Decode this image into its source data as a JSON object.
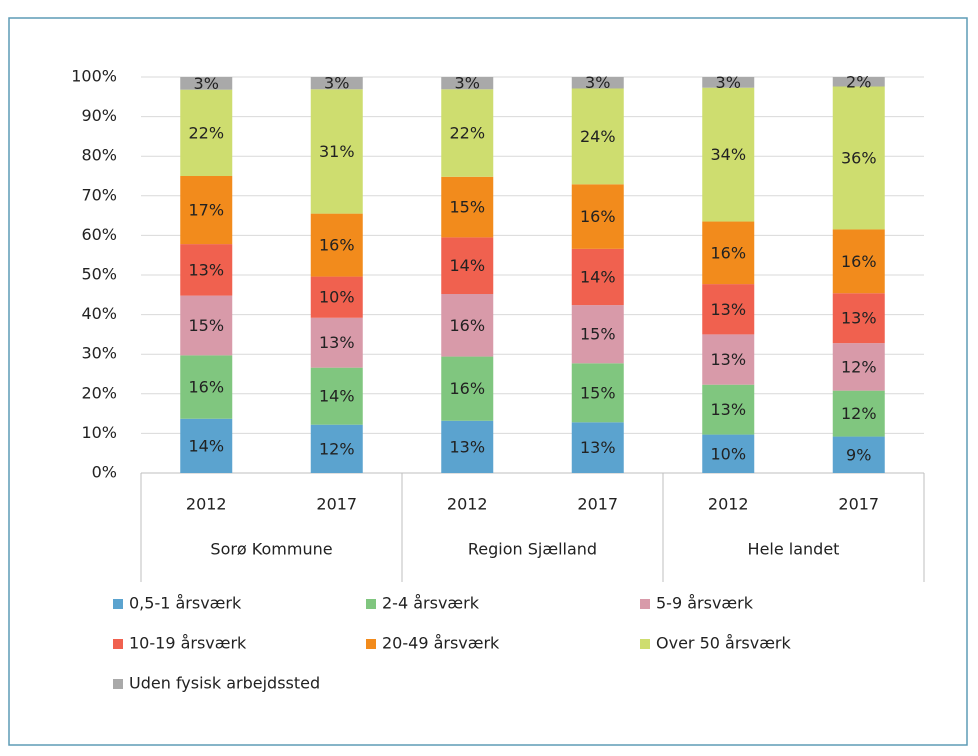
{
  "chart_data": {
    "type": "stacked_bar",
    "categories": [
      "2012",
      "2017",
      "2012",
      "2017",
      "2012",
      "2017"
    ],
    "groups": [
      "Sorø Kommune",
      "Region Sjælland",
      "Hele landet"
    ],
    "ylim": [
      0,
      100
    ],
    "yticks": [
      {
        "value": 0,
        "label": "0%"
      },
      {
        "value": 10,
        "label": "10%"
      },
      {
        "value": 20,
        "label": "20%"
      },
      {
        "value": 30,
        "label": "30%"
      },
      {
        "value": 40,
        "label": "40%"
      },
      {
        "value": 50,
        "label": "50%"
      },
      {
        "value": 60,
        "label": "60%"
      },
      {
        "value": 70,
        "label": "70%"
      },
      {
        "value": 80,
        "label": "80%"
      },
      {
        "value": 90,
        "label": "90%"
      },
      {
        "value": 100,
        "label": "100%"
      }
    ],
    "grid": true,
    "series": [
      {
        "name": "0,5-1 årsværk",
        "color": "#5ba3cf",
        "values": [
          13.7,
          12.2,
          13.2,
          12.8,
          9.7,
          9.2
        ],
        "value_labels": [
          "14%",
          "12%",
          "13%",
          "13%",
          "10%",
          "9%"
        ]
      },
      {
        "name": "2-4 årsværk",
        "color": "#80c67f",
        "values": [
          16.0,
          14.4,
          16.2,
          14.9,
          12.6,
          11.6
        ],
        "value_labels": [
          "16%",
          "14%",
          "16%",
          "15%",
          "13%",
          "12%"
        ]
      },
      {
        "name": "5-9 årsværk",
        "color": "#d89aa9",
        "values": [
          15.1,
          12.6,
          15.8,
          14.7,
          12.7,
          12.0
        ],
        "value_labels": [
          "15%",
          "13%",
          "16%",
          "15%",
          "13%",
          "12%"
        ]
      },
      {
        "name": "10-19 årsværk",
        "color": "#f0614f",
        "values": [
          13.0,
          10.4,
          14.3,
          14.2,
          12.7,
          12.6
        ],
        "value_labels": [
          "13%",
          "10%",
          "14%",
          "14%",
          "13%",
          "13%"
        ]
      },
      {
        "name": "20-49 årsværk",
        "color": "#f28b1c",
        "values": [
          17.2,
          15.9,
          15.3,
          16.3,
          15.8,
          16.1
        ],
        "value_labels": [
          "17%",
          "16%",
          "15%",
          "16%",
          "16%",
          "16%"
        ]
      },
      {
        "name": "Over 50 årsværk",
        "color": "#cedd6f",
        "values": [
          21.8,
          31.4,
          22.1,
          24.2,
          33.8,
          36.1
        ],
        "value_labels": [
          "22%",
          "31%",
          "22%",
          "24%",
          "34%",
          "36%"
        ]
      },
      {
        "name": "Uden fysisk arbejdssted",
        "color": "#a9a9a9",
        "values": [
          3.2,
          3.1,
          3.1,
          2.9,
          2.7,
          2.4
        ],
        "value_labels": [
          "3%",
          "3%",
          "3%",
          "3%",
          "3%",
          "2%"
        ]
      }
    ]
  }
}
